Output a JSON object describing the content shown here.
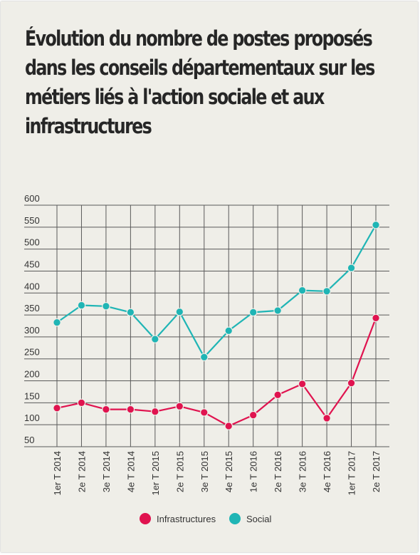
{
  "title": "Évolution du nombre de postes proposés dans les conseils départementaux sur les métiers liés à l'action sociale et aux infrastructures",
  "colors": {
    "infrastructures": "#e0134f",
    "social": "#1fb5b5",
    "grid": "#5a5a5a",
    "background": "#efeee8"
  },
  "chart_data": {
    "type": "line",
    "title": "Évolution du nombre de postes proposés dans les conseils départementaux sur les métiers liés à l'action sociale et aux infrastructures",
    "xlabel": "",
    "ylabel": "",
    "categories": [
      "1er T 2014",
      "2e T 2014",
      "3e T 2014",
      "4e T 2014",
      "1er T 2015",
      "2e T 2015",
      "3e T 2015",
      "4e T 2015",
      "1e T 2016",
      "2e T 2016",
      "3e T 2016",
      "4e T 2016",
      "1er T 2017",
      "2e T 2017"
    ],
    "yticks": [
      50,
      100,
      150,
      200,
      250,
      300,
      350,
      400,
      450,
      500,
      550,
      600
    ],
    "ylim": [
      50,
      600
    ],
    "grid": true,
    "legend_position": "bottom",
    "series": [
      {
        "name": "Infrastructures",
        "values": [
          138,
          150,
          135,
          135,
          130,
          142,
          128,
          97,
          122,
          168,
          193,
          115,
          195,
          343
        ]
      },
      {
        "name": "Social",
        "values": [
          333,
          372,
          370,
          356,
          295,
          357,
          254,
          314,
          356,
          360,
          406,
          404,
          457,
          555
        ]
      }
    ]
  }
}
